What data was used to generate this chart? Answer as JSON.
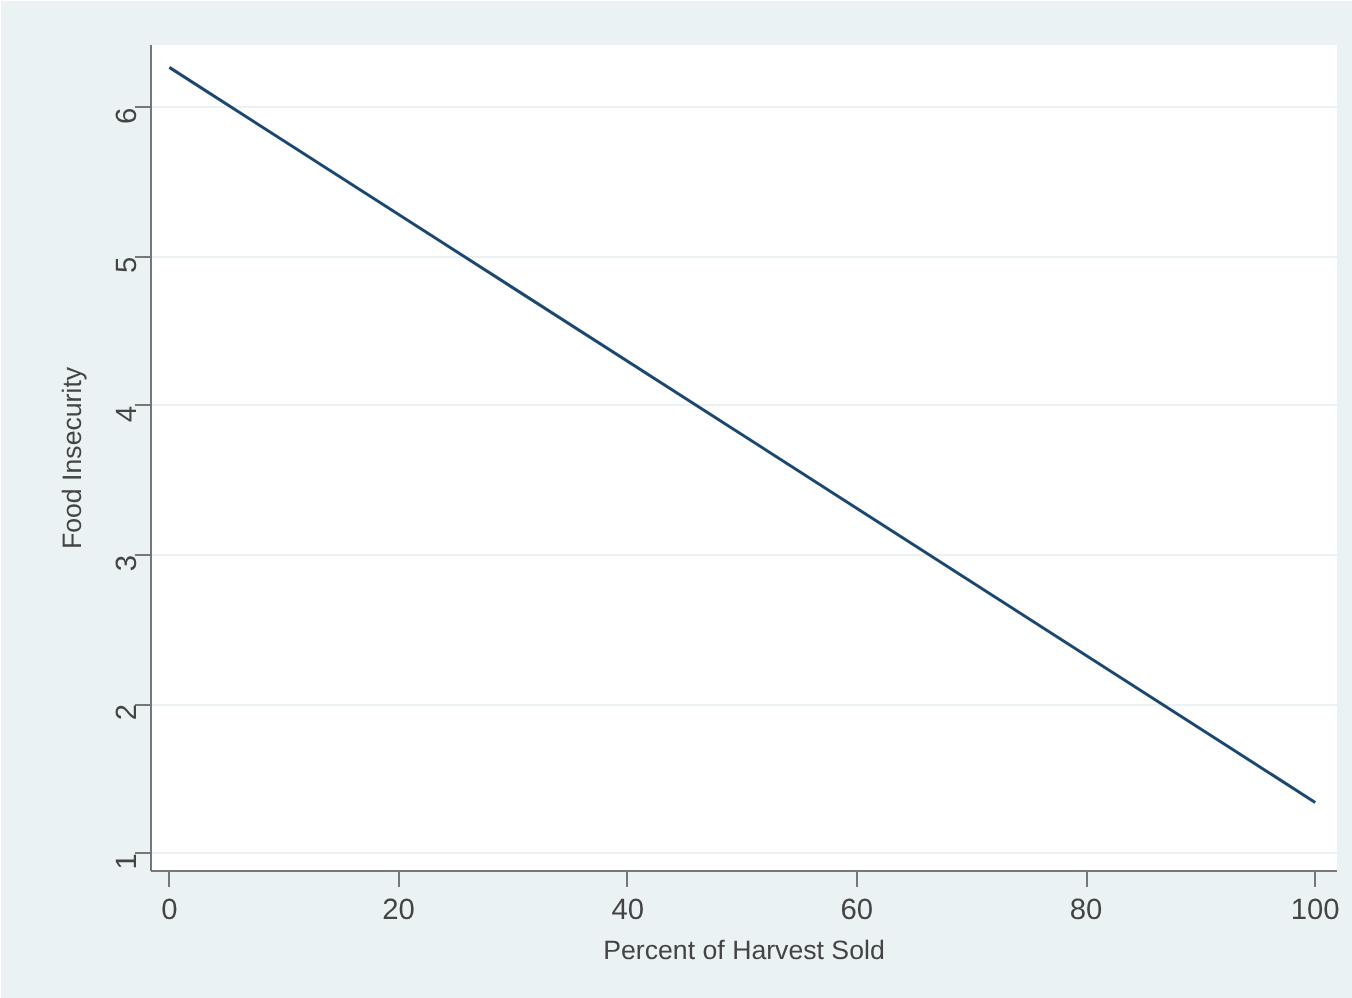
{
  "chart_data": {
    "type": "line",
    "xlabel": "Percent of Harvest Sold",
    "ylabel": "Food Insecurity",
    "x": [
      0,
      100
    ],
    "series": [
      {
        "color": "#1a476f",
        "values": [
          6.27,
          1.34
        ]
      }
    ],
    "xlim": [
      -1.6,
      101.9
    ],
    "ylim": [
      0.88,
      6.42
    ],
    "xticks": [
      0,
      20,
      40,
      60,
      80,
      100
    ],
    "yticks": [
      1,
      2,
      3,
      4,
      5,
      6
    ],
    "grid": "y",
    "marker": "none",
    "line_style": "solid"
  }
}
